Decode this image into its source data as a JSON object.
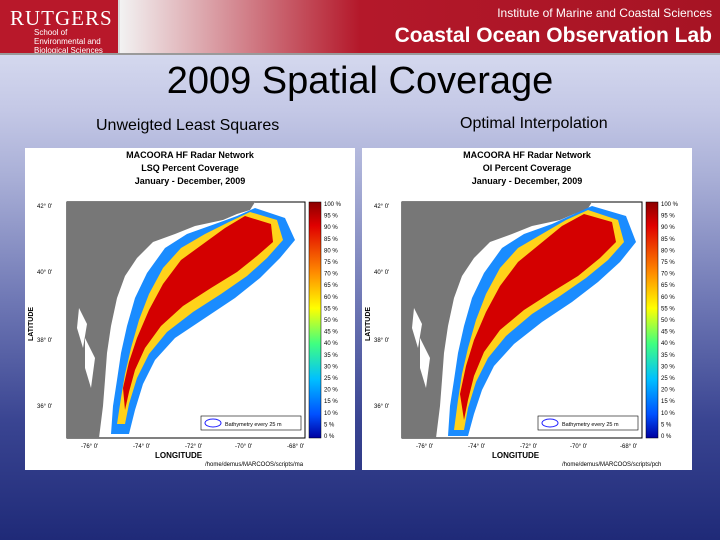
{
  "header": {
    "logo_word": "RUTGERS",
    "logo_sub": "School of Environmental and Biological Sciences",
    "institute": "Institute of Marine and Coastal Sciences",
    "lab": "Coastal Ocean Observation Lab"
  },
  "slide": {
    "title": "2009 Spatial Coverage",
    "left_label": "Unweigted Least Squares",
    "right_label": "Optimal Interpolation"
  },
  "maps": [
    {
      "title_lines": [
        "MACOORA HF Radar Network",
        "LSQ Percent Coverage",
        "January - December, 2009"
      ],
      "lat_ticks": [
        "42° 0'",
        "40° 0'",
        "38° 0'",
        "36° 0'"
      ],
      "lon_ticks": [
        "-76° 0'",
        "-74° 0'",
        "-72° 0'",
        "-70° 0'",
        "-68° 0'"
      ],
      "ylabel": "LATITUDE",
      "xlabel": "LONGITUDE",
      "bathy_label": "Bathymetry every 25 m",
      "path": "/home/demus/MARCOOS/scripts/ma",
      "colorbar": [
        "100 %",
        "95 %",
        "90 %",
        "85 %",
        "80 %",
        "75 %",
        "70 %",
        "65 %",
        "60 %",
        "55 %",
        "50 %",
        "45 %",
        "40 %",
        "35 %",
        "30 %",
        "25 %",
        "20 %",
        "15 %",
        "10 %",
        "5 %",
        "0 %"
      ]
    },
    {
      "title_lines": [
        "MACOORA HF Radar Network",
        "OI Percent Coverage",
        "January - December, 2009"
      ],
      "lat_ticks": [
        "42° 0'",
        "40° 0'",
        "38° 0'",
        "36° 0'"
      ],
      "lon_ticks": [
        "-76° 0'",
        "-74° 0'",
        "-72° 0'",
        "-70° 0'",
        "-68° 0'"
      ],
      "ylabel": "LATITUDE",
      "xlabel": "LONGITUDE",
      "bathy_label": "Bathymetry every 25 m",
      "path": "/home/demus/MARCOOS/scripts/pch",
      "colorbar": [
        "100 %",
        "95 %",
        "90 %",
        "85 %",
        "80 %",
        "75 %",
        "70 %",
        "65 %",
        "60 %",
        "55 %",
        "50 %",
        "45 %",
        "40 %",
        "35 %",
        "30 %",
        "25 %",
        "20 %",
        "15 %",
        "10 %",
        "5 %",
        "0 %"
      ]
    }
  ],
  "colors": {
    "accent_red": "#b8182a",
    "land_gray": "#777777",
    "coverage_max": "#c00000",
    "coverage_min": "#0000a0"
  }
}
